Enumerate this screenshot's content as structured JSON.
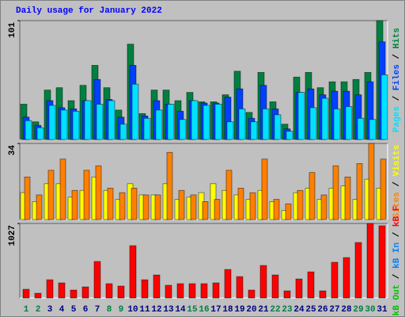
{
  "chart_data": {
    "type": "bar",
    "title": "Daily usage for January 2022",
    "categories": [
      "1",
      "2",
      "3",
      "4",
      "5",
      "6",
      "7",
      "8",
      "9",
      "10",
      "11",
      "12",
      "13",
      "14",
      "15",
      "16",
      "17",
      "18",
      "19",
      "20",
      "21",
      "22",
      "23",
      "24",
      "25",
      "26",
      "27",
      "28",
      "29",
      "30",
      "31"
    ],
    "category_colors": [
      "#008040",
      "#008040",
      "#000080",
      "#000080",
      "#000080",
      "#000080",
      "#000080",
      "#008040",
      "#008040",
      "#000080",
      "#000080",
      "#000080",
      "#000080",
      "#000080",
      "#008040",
      "#008040",
      "#000080",
      "#000080",
      "#000080",
      "#000080",
      "#000080",
      "#008040",
      "#008040",
      "#000080",
      "#000080",
      "#000080",
      "#000080",
      "#000080",
      "#008040",
      "#008040",
      "#000080"
    ],
    "panels": [
      {
        "ylim": [
          0,
          101
        ],
        "yticks": [
          101
        ],
        "series": [
          {
            "name": "Hits",
            "color": "#008040",
            "values": [
              30,
              15,
              42,
              44,
              33,
              46,
              63,
              44,
              25,
              81,
              22,
              42,
              42,
              33,
              40,
              32,
              32,
              38,
              58,
              23,
              57,
              32,
              13,
              53,
              57,
              44,
              49,
              49,
              51,
              57,
              101
            ]
          },
          {
            "name": "Files",
            "color": "#0040ff",
            "values": [
              19,
              12,
              33,
              27,
              26,
              33,
              51,
              34,
              19,
              63,
              20,
              33,
              30,
              24,
              33,
              31,
              31,
              36,
              43,
              18,
              46,
              26,
              9,
              40,
              43,
              38,
              41,
              41,
              38,
              49,
              83
            ]
          },
          {
            "name": "Pages",
            "color": "#00e0ff",
            "values": [
              16,
              10,
              29,
              25,
              24,
              33,
              30,
              33,
              13,
              47,
              18,
              25,
              30,
              17,
              33,
              29,
              30,
              15,
              26,
              15,
              26,
              21,
              7,
              40,
              27,
              35,
              26,
              28,
              18,
              17,
              55
            ]
          }
        ]
      },
      {
        "ylim": [
          0,
          34
        ],
        "yticks": [
          34
        ],
        "series": [
          {
            "name": "Visits",
            "color": "#ffff00",
            "values": [
              12,
              8,
              16,
              16,
              10,
              13,
              19,
              13,
              9,
              16,
              11,
              11,
              16,
              9,
              10,
              12,
              16,
              13,
              11,
              9,
              13,
              8,
              4,
              12,
              14,
              9,
              14,
              15,
              9,
              18,
              14
            ]
          },
          {
            "name": "Sites",
            "color": "#ff8000",
            "values": [
              19,
              11,
              22,
              27,
              13,
              22,
              24,
              14,
              12,
              14,
              11,
              11,
              30,
              13,
              11,
              8,
              9,
              22,
              14,
              12,
              27,
              9,
              7,
              13,
              21,
              11,
              24,
              19,
              25,
              34,
              27
            ]
          }
        ]
      },
      {
        "ylim": [
          0,
          1027
        ],
        "yticks": [
          1027
        ],
        "series": [
          {
            "name": "kB F",
            "color": "#ff0000",
            "values": [
              120,
              65,
              251,
              208,
              109,
              153,
              503,
              197,
              164,
              721,
              251,
              317,
              175,
              197,
              197,
              197,
              208,
              393,
              295,
              109,
              448,
              317,
              98,
              262,
              360,
              98,
              492,
              557,
              765,
              1027,
              995
            ]
          },
          {
            "name": "kB In",
            "color": "#0080ff"
          },
          {
            "name": "kB Out",
            "color": "#00c000"
          }
        ]
      }
    ]
  }
}
